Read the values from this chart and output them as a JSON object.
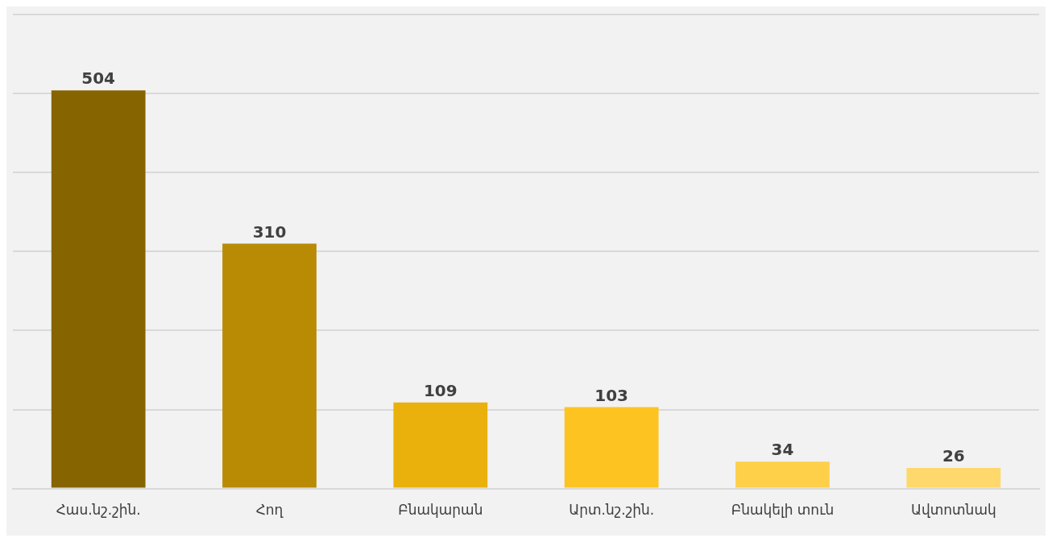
{
  "chart_data": {
    "type": "bar",
    "categories": [
      "Հաս.նշ.շին.",
      "Հող",
      "Բնակարան",
      "Արտ.նշ.շին.",
      "Բնակելի տուն",
      "Ավտոտնակ"
    ],
    "values": [
      504,
      310,
      109,
      103,
      34,
      26
    ],
    "colors": [
      "#866400",
      "#b98b05",
      "#eab10c",
      "#fdc421",
      "#fed04a",
      "#fed86a"
    ],
    "ylim": [
      0,
      600
    ],
    "yticks": [
      {
        "value": 0,
        "label": null
      },
      {
        "value": 100,
        "label": null
      },
      {
        "value": 200,
        "label": null
      },
      {
        "value": 300,
        "label": null
      },
      {
        "value": 400,
        "label": null
      },
      {
        "value": 500,
        "label": null
      },
      {
        "value": 600,
        "label": null
      }
    ],
    "grid": "y",
    "data_labels": true,
    "legend": false
  }
}
